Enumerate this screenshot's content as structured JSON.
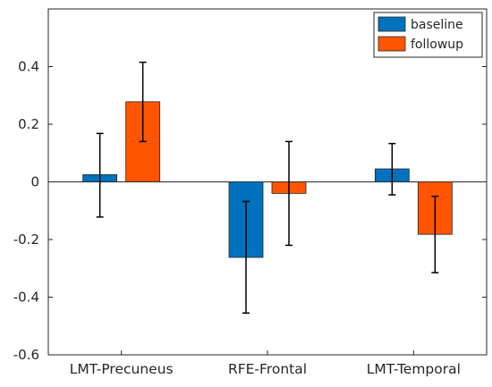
{
  "chart_data": {
    "type": "bar",
    "title": "",
    "xlabel": "",
    "ylabel": "",
    "categories": [
      "LMT-Precuneus",
      "RFE-Frontal",
      "LMT-Temporal"
    ],
    "series": [
      {
        "name": "baseline",
        "color": "#0072BD",
        "values": [
          0.025,
          -0.262,
          0.045
        ],
        "error_low": [
          -0.122,
          -0.455,
          -0.045
        ],
        "error_high": [
          0.168,
          -0.068,
          0.133
        ]
      },
      {
        "name": "followup",
        "color": "#FF5500",
        "values": [
          0.278,
          -0.04,
          -0.182
        ],
        "error_low": [
          0.14,
          -0.22,
          -0.315
        ],
        "error_high": [
          0.415,
          0.14,
          -0.05
        ]
      }
    ],
    "ylim": [
      -0.6,
      0.6
    ],
    "yticks": [
      -0.6,
      -0.4,
      -0.2,
      0,
      0.2,
      0.4
    ],
    "ytick_labels": [
      "-0.6",
      "-0.4",
      "-0.2",
      "0",
      "0.2",
      "0.4"
    ],
    "grid": false,
    "legend_position": "top-right"
  }
}
